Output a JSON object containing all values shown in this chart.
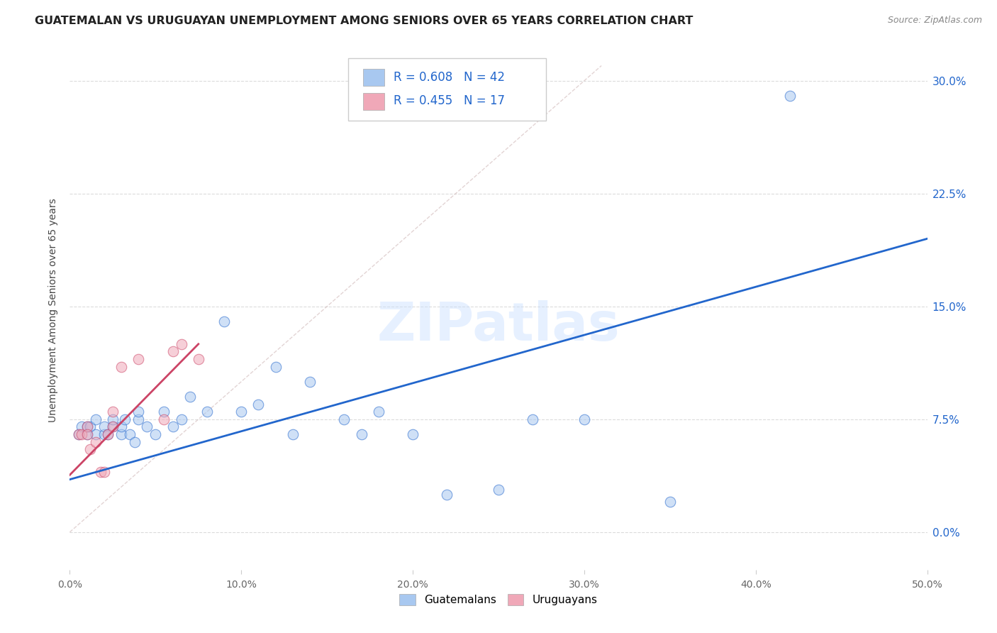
{
  "title": "GUATEMALAN VS URUGUAYAN UNEMPLOYMENT AMONG SENIORS OVER 65 YEARS CORRELATION CHART",
  "source": "Source: ZipAtlas.com",
  "ylabel": "Unemployment Among Seniors over 65 years",
  "xlim": [
    0.0,
    0.5
  ],
  "ylim": [
    -0.025,
    0.32
  ],
  "xticks": [
    0.0,
    0.1,
    0.2,
    0.3,
    0.4,
    0.5
  ],
  "xticklabels": [
    "0.0%",
    "10.0%",
    "20.0%",
    "30.0%",
    "40.0%",
    "50.0%"
  ],
  "yticks": [
    0.0,
    0.075,
    0.15,
    0.225,
    0.3
  ],
  "yticklabels": [
    "0.0%",
    "7.5%",
    "15.0%",
    "22.5%",
    "30.0%"
  ],
  "legend_r1": "0.608",
  "legend_n1": "42",
  "legend_r2": "0.455",
  "legend_n2": "17",
  "legend_label1": "Guatemalans",
  "legend_label2": "Uruguayans",
  "color_blue": "#A8C8F0",
  "color_pink": "#F0A8B8",
  "color_blue_line": "#2266CC",
  "color_pink_line": "#CC4466",
  "color_diag": "#D0B8B8",
  "watermark": "ZIPatlas",
  "guatemalan_x": [
    0.005,
    0.007,
    0.01,
    0.01,
    0.012,
    0.015,
    0.015,
    0.02,
    0.02,
    0.022,
    0.025,
    0.025,
    0.03,
    0.03,
    0.032,
    0.035,
    0.038,
    0.04,
    0.04,
    0.045,
    0.05,
    0.055,
    0.06,
    0.065,
    0.07,
    0.08,
    0.09,
    0.1,
    0.11,
    0.12,
    0.13,
    0.14,
    0.16,
    0.17,
    0.18,
    0.2,
    0.22,
    0.25,
    0.27,
    0.3,
    0.35,
    0.42
  ],
  "guatemalan_y": [
    0.065,
    0.07,
    0.065,
    0.07,
    0.07,
    0.065,
    0.075,
    0.065,
    0.07,
    0.065,
    0.07,
    0.075,
    0.065,
    0.07,
    0.075,
    0.065,
    0.06,
    0.075,
    0.08,
    0.07,
    0.065,
    0.08,
    0.07,
    0.075,
    0.09,
    0.08,
    0.14,
    0.08,
    0.085,
    0.11,
    0.065,
    0.1,
    0.075,
    0.065,
    0.08,
    0.065,
    0.025,
    0.028,
    0.075,
    0.075,
    0.02,
    0.29
  ],
  "uruguayan_x": [
    0.005,
    0.007,
    0.01,
    0.01,
    0.012,
    0.015,
    0.018,
    0.02,
    0.022,
    0.025,
    0.025,
    0.03,
    0.04,
    0.055,
    0.06,
    0.065,
    0.075
  ],
  "uruguayan_y": [
    0.065,
    0.065,
    0.07,
    0.065,
    0.055,
    0.06,
    0.04,
    0.04,
    0.065,
    0.07,
    0.08,
    0.11,
    0.115,
    0.075,
    0.12,
    0.125,
    0.115
  ],
  "blue_trendline_x": [
    0.0,
    0.5
  ],
  "blue_trendline_y": [
    0.035,
    0.195
  ],
  "pink_trendline_x": [
    0.0,
    0.075
  ],
  "pink_trendline_y": [
    0.038,
    0.125
  ],
  "diag_line_x": [
    0.0,
    0.31
  ],
  "diag_line_y": [
    0.0,
    0.31
  ],
  "background_color": "#FFFFFF",
  "grid_color": "#CCCCCC"
}
